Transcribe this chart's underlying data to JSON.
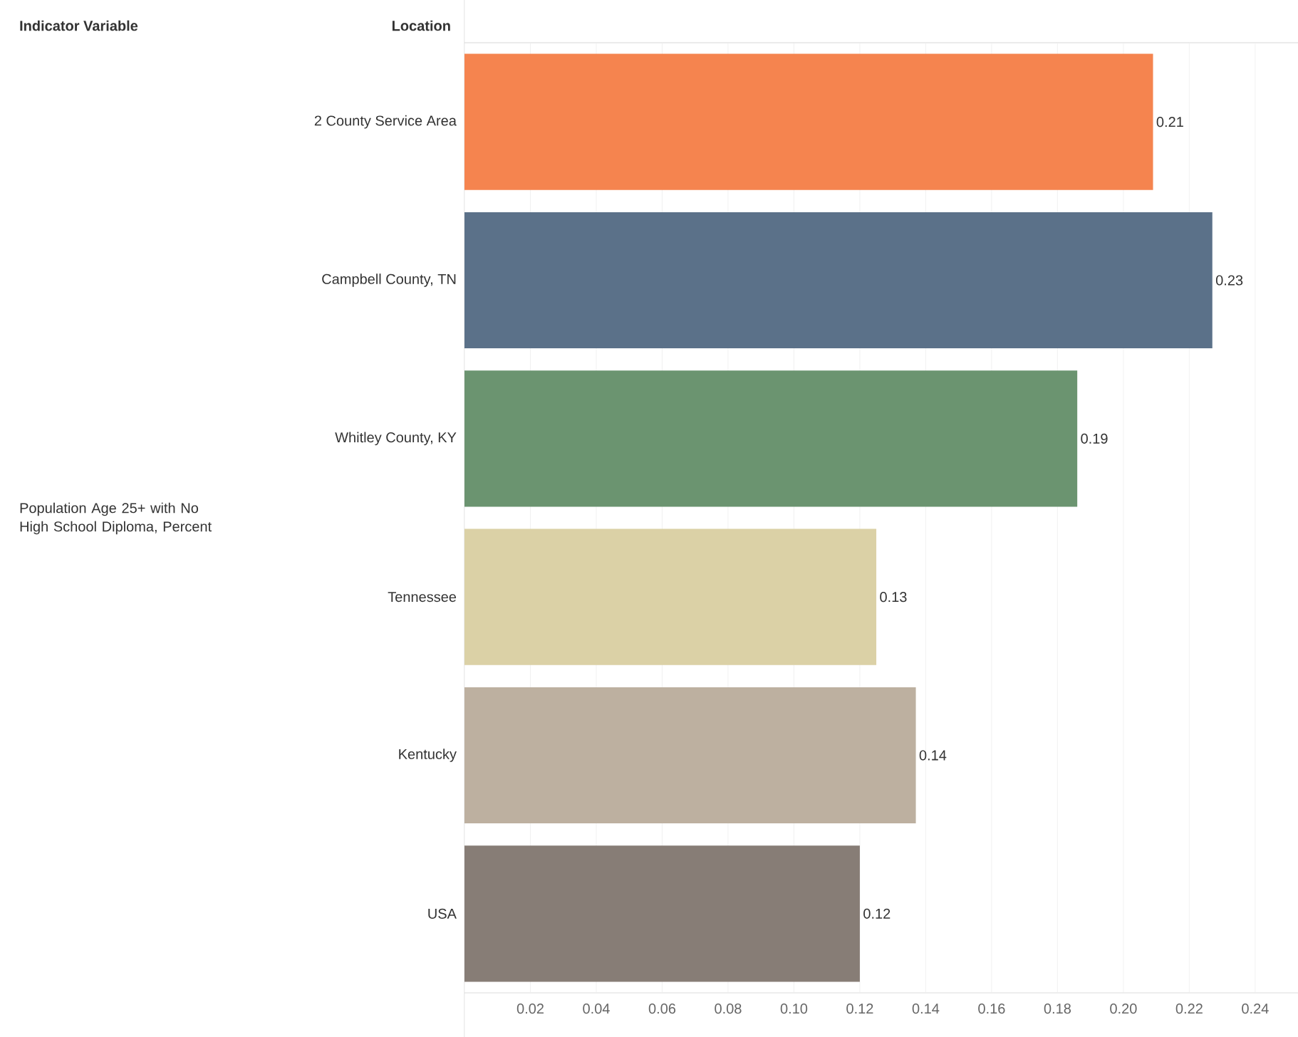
{
  "chart_data": {
    "type": "bar",
    "orientation": "horizontal",
    "ylabel": "Location",
    "annotations": [
      "Indicator Variable",
      "Population Age 25+ with No High School Diploma, Percent"
    ],
    "categories": [
      "2 County Service Area",
      "Campbell County, TN",
      "Whitley County, KY",
      "Tennessee",
      "Kentucky",
      "USA"
    ],
    "values": [
      0.209,
      0.227,
      0.186,
      0.125,
      0.137,
      0.12
    ],
    "value_labels": [
      "0.21",
      "0.23",
      "0.19",
      "0.13",
      "0.14",
      "0.12"
    ],
    "colors": [
      "#f5844f",
      "#5b7189",
      "#6b9470",
      "#dbd1a6",
      "#bdb0a0",
      "#877d76"
    ],
    "xlim": [
      0,
      0.253
    ],
    "xticks": [
      0.02,
      0.04,
      0.06,
      0.08,
      {
        "value": 0.1,
        "label": "0.10"
      },
      0.12,
      0.14,
      0.16,
      0.18,
      {
        "value": 0.2,
        "label": "0.20"
      },
      0.22,
      0.24
    ],
    "grid": "x"
  }
}
